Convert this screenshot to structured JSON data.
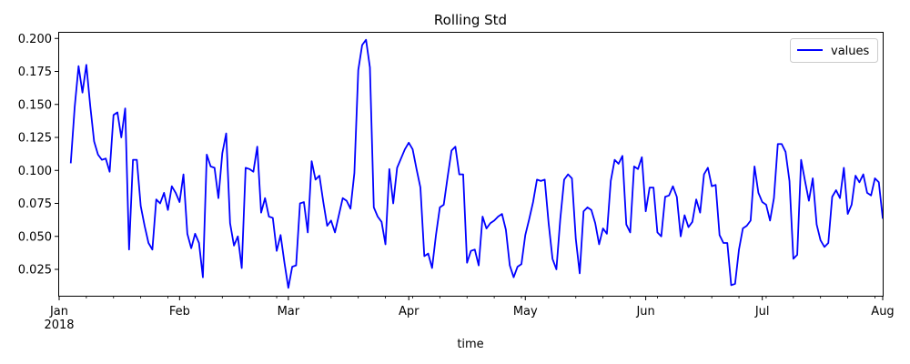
{
  "chart_data": {
    "type": "line",
    "title": "Rolling Std",
    "xlabel": "time",
    "ylabel": "",
    "xlim": [
      "2018-01-01",
      "2018-08-01"
    ],
    "ylim": [
      0.005,
      0.205
    ],
    "grid": false,
    "legend_position": "top-right",
    "y_ticks": [
      0.025,
      0.05,
      0.075,
      0.1,
      0.125,
      0.15,
      0.175,
      0.2
    ],
    "y_tick_labels": [
      "0.025",
      "0.050",
      "0.075",
      "0.100",
      "0.125",
      "0.150",
      "0.175",
      "0.200"
    ],
    "x_major_ticks": [
      {
        "date": "2018-01-01",
        "label": "Jan",
        "sublabel": "2018"
      },
      {
        "date": "2018-02-01",
        "label": "Feb",
        "sublabel": ""
      },
      {
        "date": "2018-03-01",
        "label": "Mar",
        "sublabel": ""
      },
      {
        "date": "2018-04-01",
        "label": "Apr",
        "sublabel": ""
      },
      {
        "date": "2018-05-01",
        "label": "May",
        "sublabel": ""
      },
      {
        "date": "2018-06-01",
        "label": "Jun",
        "sublabel": ""
      },
      {
        "date": "2018-07-01",
        "label": "Jul",
        "sublabel": ""
      },
      {
        "date": "2018-08-01",
        "label": "Aug",
        "sublabel": ""
      }
    ],
    "x_minor_ticks": [
      "2018-01-08",
      "2018-01-15",
      "2018-01-22",
      "2018-01-29",
      "2018-02-05",
      "2018-02-12",
      "2018-02-19",
      "2018-02-26",
      "2018-03-05",
      "2018-03-12",
      "2018-03-19",
      "2018-03-26",
      "2018-04-02",
      "2018-04-09",
      "2018-04-16",
      "2018-04-23",
      "2018-04-30",
      "2018-05-07",
      "2018-05-14",
      "2018-05-21",
      "2018-05-28",
      "2018-06-04",
      "2018-06-11",
      "2018-06-18",
      "2018-06-25",
      "2018-07-02",
      "2018-07-09",
      "2018-07-16",
      "2018-07-23",
      "2018-07-30"
    ],
    "series": [
      {
        "name": "values",
        "color": "#0000ff",
        "points": [
          [
            "2018-01-04",
            0.106
          ],
          [
            "2018-01-05",
            0.148
          ],
          [
            "2018-01-06",
            0.179
          ],
          [
            "2018-01-07",
            0.159
          ],
          [
            "2018-01-08",
            0.18
          ],
          [
            "2018-01-09",
            0.149
          ],
          [
            "2018-01-10",
            0.122
          ],
          [
            "2018-01-11",
            0.112
          ],
          [
            "2018-01-12",
            0.108
          ],
          [
            "2018-01-13",
            0.109
          ],
          [
            "2018-01-14",
            0.099
          ],
          [
            "2018-01-15",
            0.142
          ],
          [
            "2018-01-16",
            0.144
          ],
          [
            "2018-01-17",
            0.125
          ],
          [
            "2018-01-18",
            0.147
          ],
          [
            "2018-01-19",
            0.04
          ],
          [
            "2018-01-20",
            0.108
          ],
          [
            "2018-01-21",
            0.108
          ],
          [
            "2018-01-22",
            0.073
          ],
          [
            "2018-01-23",
            0.058
          ],
          [
            "2018-01-24",
            0.045
          ],
          [
            "2018-01-25",
            0.04
          ],
          [
            "2018-01-26",
            0.078
          ],
          [
            "2018-01-27",
            0.075
          ],
          [
            "2018-01-28",
            0.083
          ],
          [
            "2018-01-29",
            0.07
          ],
          [
            "2018-01-30",
            0.088
          ],
          [
            "2018-01-31",
            0.083
          ],
          [
            "2018-02-01",
            0.076
          ],
          [
            "2018-02-02",
            0.097
          ],
          [
            "2018-02-03",
            0.052
          ],
          [
            "2018-02-04",
            0.041
          ],
          [
            "2018-02-05",
            0.052
          ],
          [
            "2018-02-06",
            0.045
          ],
          [
            "2018-02-07",
            0.019
          ],
          [
            "2018-02-08",
            0.112
          ],
          [
            "2018-02-09",
            0.103
          ],
          [
            "2018-02-10",
            0.102
          ],
          [
            "2018-02-11",
            0.079
          ],
          [
            "2018-02-12",
            0.113
          ],
          [
            "2018-02-13",
            0.128
          ],
          [
            "2018-02-14",
            0.06
          ],
          [
            "2018-02-15",
            0.043
          ],
          [
            "2018-02-16",
            0.05
          ],
          [
            "2018-02-17",
            0.026
          ],
          [
            "2018-02-18",
            0.102
          ],
          [
            "2018-02-19",
            0.101
          ],
          [
            "2018-02-20",
            0.099
          ],
          [
            "2018-02-21",
            0.118
          ],
          [
            "2018-02-22",
            0.068
          ],
          [
            "2018-02-23",
            0.079
          ],
          [
            "2018-02-24",
            0.065
          ],
          [
            "2018-02-25",
            0.064
          ],
          [
            "2018-02-26",
            0.039
          ],
          [
            "2018-02-27",
            0.051
          ],
          [
            "2018-02-28",
            0.03
          ],
          [
            "2018-03-01",
            0.011
          ],
          [
            "2018-03-02",
            0.027
          ],
          [
            "2018-03-03",
            0.028
          ],
          [
            "2018-03-04",
            0.075
          ],
          [
            "2018-03-05",
            0.076
          ],
          [
            "2018-03-06",
            0.053
          ],
          [
            "2018-03-07",
            0.107
          ],
          [
            "2018-03-08",
            0.093
          ],
          [
            "2018-03-09",
            0.096
          ],
          [
            "2018-03-10",
            0.076
          ],
          [
            "2018-03-11",
            0.058
          ],
          [
            "2018-03-12",
            0.062
          ],
          [
            "2018-03-13",
            0.053
          ],
          [
            "2018-03-14",
            0.066
          ],
          [
            "2018-03-15",
            0.079
          ],
          [
            "2018-03-16",
            0.077
          ],
          [
            "2018-03-17",
            0.071
          ],
          [
            "2018-03-18",
            0.098
          ],
          [
            "2018-03-19",
            0.176
          ],
          [
            "2018-03-20",
            0.195
          ],
          [
            "2018-03-21",
            0.199
          ],
          [
            "2018-03-22",
            0.178
          ],
          [
            "2018-03-23",
            0.072
          ],
          [
            "2018-03-24",
            0.065
          ],
          [
            "2018-03-25",
            0.061
          ],
          [
            "2018-03-26",
            0.044
          ],
          [
            "2018-03-27",
            0.101
          ],
          [
            "2018-03-28",
            0.075
          ],
          [
            "2018-03-29",
            0.102
          ],
          [
            "2018-03-30",
            0.109
          ],
          [
            "2018-03-31",
            0.116
          ],
          [
            "2018-04-01",
            0.121
          ],
          [
            "2018-04-02",
            0.116
          ],
          [
            "2018-04-03",
            0.101
          ],
          [
            "2018-04-04",
            0.087
          ],
          [
            "2018-04-05",
            0.035
          ],
          [
            "2018-04-06",
            0.037
          ],
          [
            "2018-04-07",
            0.026
          ],
          [
            "2018-04-08",
            0.051
          ],
          [
            "2018-04-09",
            0.072
          ],
          [
            "2018-04-10",
            0.074
          ],
          [
            "2018-04-11",
            0.095
          ],
          [
            "2018-04-12",
            0.115
          ],
          [
            "2018-04-13",
            0.118
          ],
          [
            "2018-04-14",
            0.097
          ],
          [
            "2018-04-15",
            0.097
          ],
          [
            "2018-04-16",
            0.03
          ],
          [
            "2018-04-17",
            0.039
          ],
          [
            "2018-04-18",
            0.04
          ],
          [
            "2018-04-19",
            0.028
          ],
          [
            "2018-04-20",
            0.065
          ],
          [
            "2018-04-21",
            0.056
          ],
          [
            "2018-04-22",
            0.06
          ],
          [
            "2018-04-23",
            0.062
          ],
          [
            "2018-04-24",
            0.065
          ],
          [
            "2018-04-25",
            0.067
          ],
          [
            "2018-04-26",
            0.055
          ],
          [
            "2018-04-27",
            0.028
          ],
          [
            "2018-04-28",
            0.019
          ],
          [
            "2018-04-29",
            0.027
          ],
          [
            "2018-04-30",
            0.029
          ],
          [
            "2018-05-01",
            0.051
          ],
          [
            "2018-05-02",
            0.063
          ],
          [
            "2018-05-03",
            0.076
          ],
          [
            "2018-05-04",
            0.093
          ],
          [
            "2018-05-05",
            0.092
          ],
          [
            "2018-05-06",
            0.093
          ],
          [
            "2018-05-07",
            0.06
          ],
          [
            "2018-05-08",
            0.033
          ],
          [
            "2018-05-09",
            0.025
          ],
          [
            "2018-05-10",
            0.063
          ],
          [
            "2018-05-11",
            0.093
          ],
          [
            "2018-05-12",
            0.097
          ],
          [
            "2018-05-13",
            0.094
          ],
          [
            "2018-05-14",
            0.048
          ],
          [
            "2018-05-15",
            0.022
          ],
          [
            "2018-05-16",
            0.069
          ],
          [
            "2018-05-17",
            0.072
          ],
          [
            "2018-05-18",
            0.07
          ],
          [
            "2018-05-19",
            0.06
          ],
          [
            "2018-05-20",
            0.044
          ],
          [
            "2018-05-21",
            0.056
          ],
          [
            "2018-05-22",
            0.052
          ],
          [
            "2018-05-23",
            0.092
          ],
          [
            "2018-05-24",
            0.108
          ],
          [
            "2018-05-25",
            0.105
          ],
          [
            "2018-05-26",
            0.111
          ],
          [
            "2018-05-27",
            0.059
          ],
          [
            "2018-05-28",
            0.053
          ],
          [
            "2018-05-29",
            0.103
          ],
          [
            "2018-05-30",
            0.101
          ],
          [
            "2018-05-31",
            0.11
          ],
          [
            "2018-06-01",
            0.069
          ],
          [
            "2018-06-02",
            0.087
          ],
          [
            "2018-06-03",
            0.087
          ],
          [
            "2018-06-04",
            0.053
          ],
          [
            "2018-06-05",
            0.05
          ],
          [
            "2018-06-06",
            0.08
          ],
          [
            "2018-06-07",
            0.081
          ],
          [
            "2018-06-08",
            0.088
          ],
          [
            "2018-06-09",
            0.08
          ],
          [
            "2018-06-10",
            0.05
          ],
          [
            "2018-06-11",
            0.066
          ],
          [
            "2018-06-12",
            0.057
          ],
          [
            "2018-06-13",
            0.061
          ],
          [
            "2018-06-14",
            0.078
          ],
          [
            "2018-06-15",
            0.068
          ],
          [
            "2018-06-16",
            0.097
          ],
          [
            "2018-06-17",
            0.102
          ],
          [
            "2018-06-18",
            0.088
          ],
          [
            "2018-06-19",
            0.089
          ],
          [
            "2018-06-20",
            0.051
          ],
          [
            "2018-06-21",
            0.045
          ],
          [
            "2018-06-22",
            0.045
          ],
          [
            "2018-06-23",
            0.013
          ],
          [
            "2018-06-24",
            0.014
          ],
          [
            "2018-06-25",
            0.04
          ],
          [
            "2018-06-26",
            0.056
          ],
          [
            "2018-06-27",
            0.058
          ],
          [
            "2018-06-28",
            0.062
          ],
          [
            "2018-06-29",
            0.103
          ],
          [
            "2018-06-30",
            0.083
          ],
          [
            "2018-07-01",
            0.076
          ],
          [
            "2018-07-02",
            0.074
          ],
          [
            "2018-07-03",
            0.062
          ],
          [
            "2018-07-04",
            0.079
          ],
          [
            "2018-07-05",
            0.12
          ],
          [
            "2018-07-06",
            0.12
          ],
          [
            "2018-07-07",
            0.114
          ],
          [
            "2018-07-08",
            0.092
          ],
          [
            "2018-07-09",
            0.033
          ],
          [
            "2018-07-10",
            0.036
          ],
          [
            "2018-07-11",
            0.108
          ],
          [
            "2018-07-12",
            0.092
          ],
          [
            "2018-07-13",
            0.077
          ],
          [
            "2018-07-14",
            0.094
          ],
          [
            "2018-07-15",
            0.059
          ],
          [
            "2018-07-16",
            0.047
          ],
          [
            "2018-07-17",
            0.042
          ],
          [
            "2018-07-18",
            0.045
          ],
          [
            "2018-07-19",
            0.08
          ],
          [
            "2018-07-20",
            0.085
          ],
          [
            "2018-07-21",
            0.079
          ],
          [
            "2018-07-22",
            0.102
          ],
          [
            "2018-07-23",
            0.067
          ],
          [
            "2018-07-24",
            0.074
          ],
          [
            "2018-07-25",
            0.096
          ],
          [
            "2018-07-26",
            0.091
          ],
          [
            "2018-07-27",
            0.097
          ],
          [
            "2018-07-28",
            0.083
          ],
          [
            "2018-07-29",
            0.081
          ],
          [
            "2018-07-30",
            0.094
          ],
          [
            "2018-07-31",
            0.091
          ],
          [
            "2018-08-01",
            0.064
          ]
        ]
      }
    ]
  }
}
